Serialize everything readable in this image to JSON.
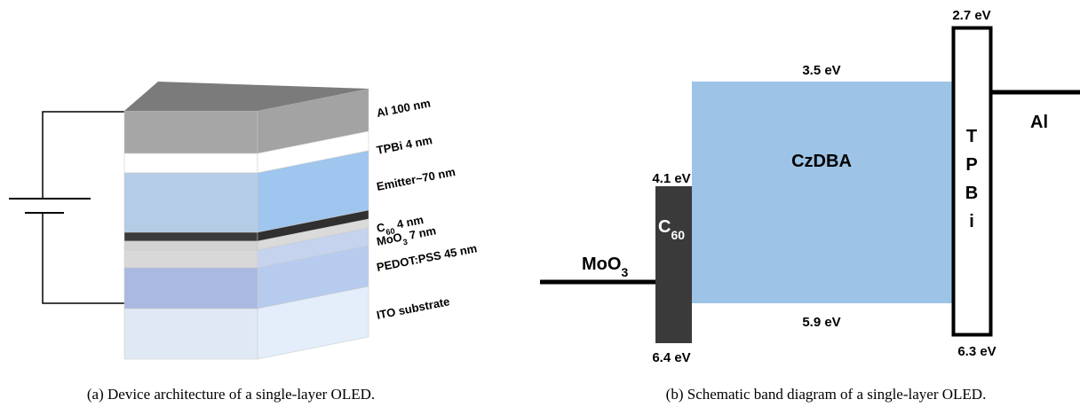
{
  "left": {
    "labels": [
      {
        "text": "Al 100 nm"
      },
      {
        "text": "TPBi 4 nm"
      },
      {
        "text": "Emitter~70 nm"
      },
      {
        "text": "C",
        "sub": "60",
        "tail": " 4 nm"
      },
      {
        "text": "MoO",
        "sub": "3",
        "tail": " 7 nm"
      },
      {
        "text": "PEDOT:PSS  45 nm"
      },
      {
        "text": "ITO substrate"
      }
    ],
    "caption": "(a) Device architecture of a single-layer OLED."
  },
  "right": {
    "tpbi_lumo": "2.7 eV",
    "czdba_lumo": "3.5 eV",
    "c60_lumo": "4.1 eV",
    "czdba": "CzDBA",
    "c60": {
      "text": "C",
      "sub": "60"
    },
    "moo3": {
      "text": "MoO",
      "sub": "3"
    },
    "tpbi_letters": [
      "T",
      "P",
      "B",
      "i"
    ],
    "al": "Al",
    "czdba_homo": "5.9 eV",
    "c60_homo": "6.4 eV",
    "tpbi_homo": "6.3 eV",
    "caption": "(b) Schematic band diagram of a single-layer OLED."
  }
}
